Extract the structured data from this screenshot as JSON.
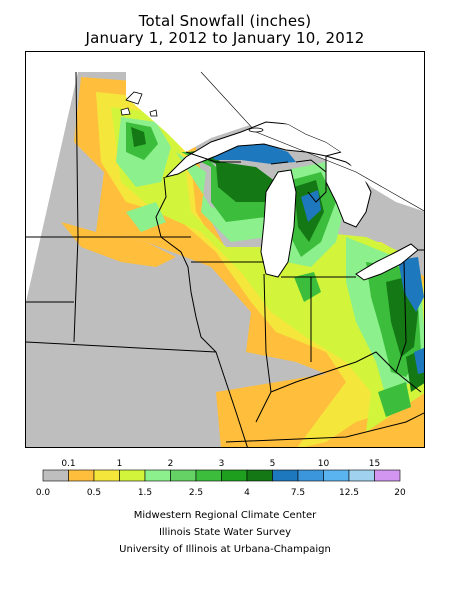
{
  "title": {
    "line1": "Total Snowfall (inches)",
    "line2": "January 1, 2012 to January 10, 2012"
  },
  "legend": {
    "upper_labels": [
      "0.1",
      "1",
      "2",
      "3",
      "5",
      "10",
      "15"
    ],
    "lower_labels": [
      "0.0",
      "0.5",
      "1.5",
      "2.5",
      "4",
      "7.5",
      "12.5",
      "20"
    ],
    "bins": [
      {
        "from": 0.0,
        "to": 0.1,
        "color": "#bebebe"
      },
      {
        "from": 0.1,
        "to": 0.5,
        "color": "#ffbe3c"
      },
      {
        "from": 0.5,
        "to": 1,
        "color": "#f5e63c"
      },
      {
        "from": 1,
        "to": 1.5,
        "color": "#d2f53c"
      },
      {
        "from": 1.5,
        "to": 2,
        "color": "#8cf08c"
      },
      {
        "from": 2,
        "to": 2.5,
        "color": "#64d264"
      },
      {
        "from": 2.5,
        "to": 3,
        "color": "#3cbe3c"
      },
      {
        "from": 3,
        "to": 4,
        "color": "#1ea01e"
      },
      {
        "from": 4,
        "to": 5,
        "color": "#147814"
      },
      {
        "from": 5,
        "to": 7.5,
        "color": "#1e78be"
      },
      {
        "from": 7.5,
        "to": 10,
        "color": "#3c96dc"
      },
      {
        "from": 10,
        "to": 12.5,
        "color": "#5ab4f0"
      },
      {
        "from": 12.5,
        "to": 15,
        "color": "#a0d2f0"
      },
      {
        "from": 15,
        "to": 20,
        "color": "#d296f0"
      }
    ]
  },
  "credits": {
    "line1": "Midwestern Regional Climate Center",
    "line2": "Illinois State Water Survey",
    "line3": "University of Illinois at Urbana-Champaign"
  }
}
